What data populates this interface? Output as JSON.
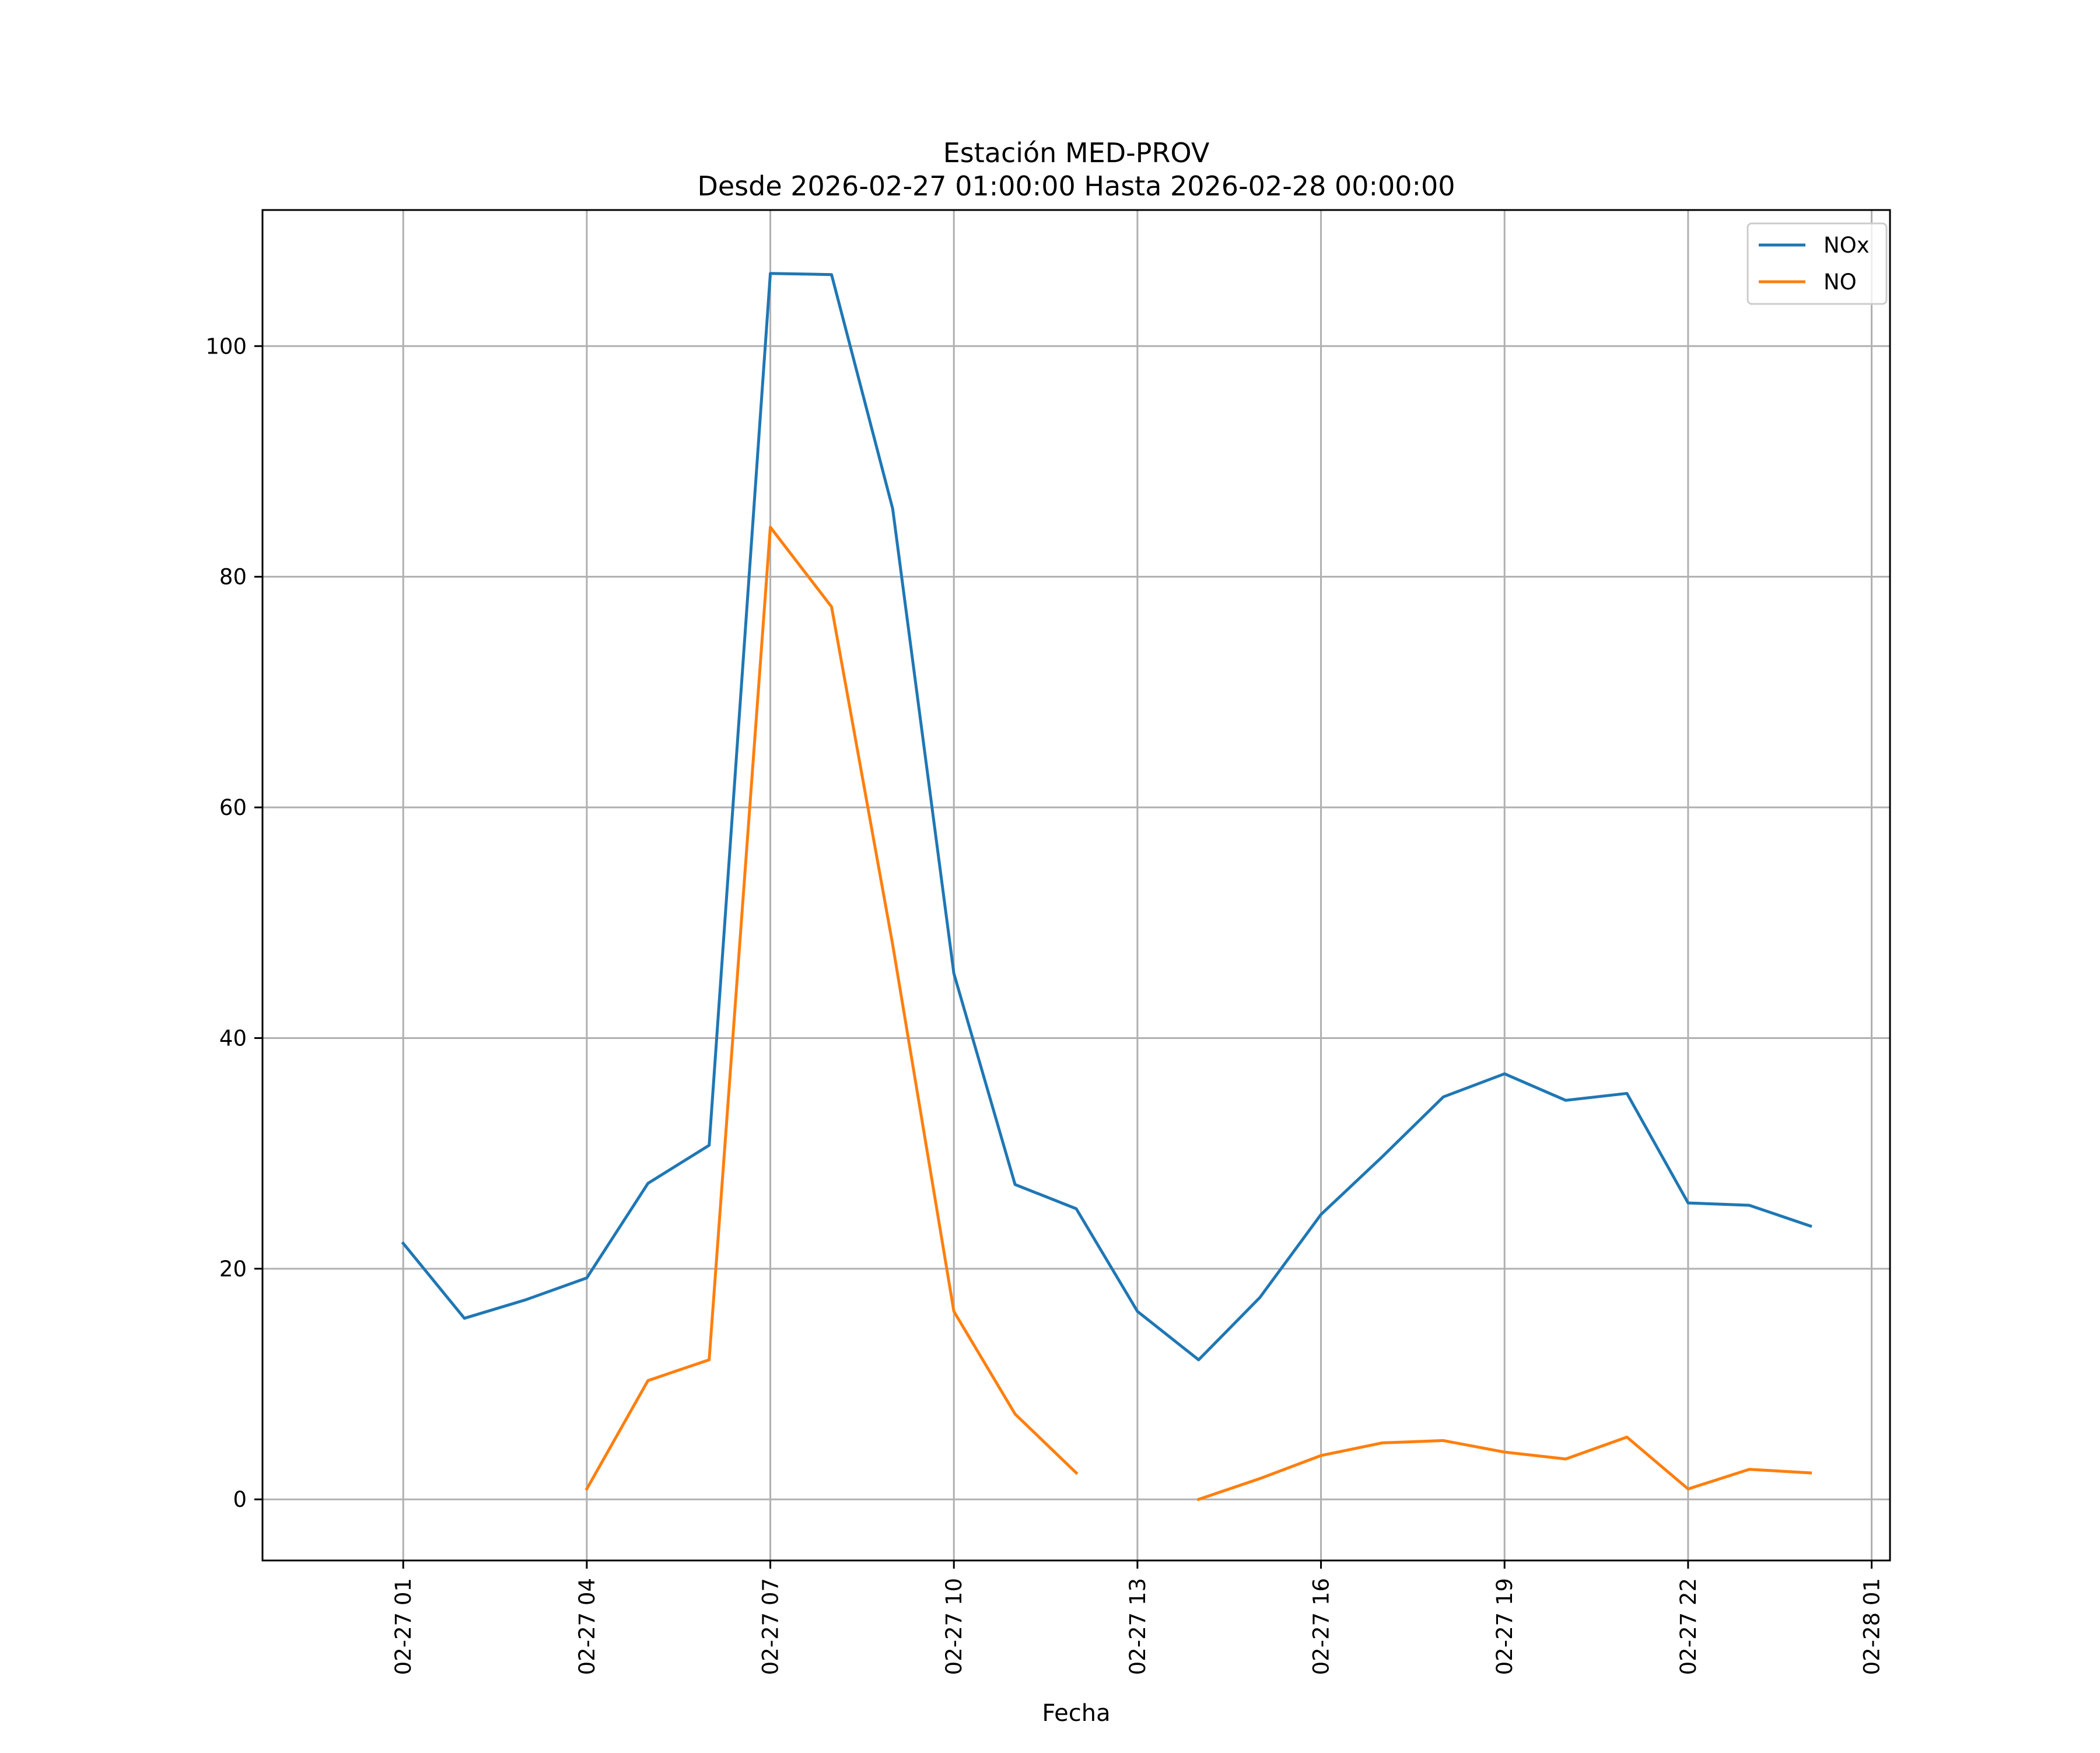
{
  "chart_data": {
    "type": "line",
    "title": "Estación MED-PROV",
    "subtitle": "Desde 2026-02-27 01:00:00 Hasta 2026-02-28 00:00:00",
    "xlabel": "Fecha",
    "ylabel": "",
    "x": [
      "2026-02-27 01:00",
      "2026-02-27 02:00",
      "2026-02-27 03:00",
      "2026-02-27 04:00",
      "2026-02-27 05:00",
      "2026-02-27 06:00",
      "2026-02-27 07:00",
      "2026-02-27 08:00",
      "2026-02-27 09:00",
      "2026-02-27 10:00",
      "2026-02-27 11:00",
      "2026-02-27 12:00",
      "2026-02-27 13:00",
      "2026-02-27 14:00",
      "2026-02-27 15:00",
      "2026-02-27 16:00",
      "2026-02-27 17:00",
      "2026-02-27 18:00",
      "2026-02-27 19:00",
      "2026-02-27 20:00",
      "2026-02-27 21:00",
      "2026-02-27 22:00",
      "2026-02-27 23:00",
      "2026-02-28 00:00"
    ],
    "xlim": [
      "2026-02-26 22:42",
      "2026-02-28 01:18"
    ],
    "ylim": [
      -5.3,
      111.8
    ],
    "xticks": [
      "2026-02-27 01:00",
      "2026-02-27 04:00",
      "2026-02-27 07:00",
      "2026-02-27 10:00",
      "2026-02-27 13:00",
      "2026-02-27 16:00",
      "2026-02-27 19:00",
      "2026-02-27 22:00",
      "2026-02-28 01:00"
    ],
    "xtick_labels": [
      "02-27 01",
      "02-27 04",
      "02-27 07",
      "02-27 10",
      "02-27 13",
      "02-27 16",
      "02-27 19",
      "02-27 22",
      "02-28 01"
    ],
    "yticks": [
      0,
      20,
      40,
      60,
      80,
      100
    ],
    "ytick_labels": [
      "0",
      "20",
      "40",
      "60",
      "80",
      "100"
    ],
    "grid": true,
    "legend_position": "top-right",
    "series": [
      {
        "name": "NOx",
        "color": "#1f77b4",
        "values": [
          22.2,
          15.7,
          17.3,
          19.2,
          27.4,
          30.7,
          106.3,
          106.2,
          85.9,
          45.6,
          27.3,
          25.2,
          16.3,
          12.1,
          17.5,
          24.7,
          29.7,
          34.9,
          36.9,
          34.6,
          35.2,
          25.7,
          25.5,
          23.7
        ]
      },
      {
        "name": "NO",
        "color": "#ff7f0e",
        "values": [
          null,
          null,
          null,
          0.9,
          10.3,
          12.1,
          84.3,
          77.4,
          48.1,
          16.3,
          7.4,
          2.3,
          null,
          0.0,
          1.8,
          3.8,
          4.9,
          5.1,
          4.1,
          3.5,
          5.4,
          0.9,
          2.6,
          2.3
        ]
      }
    ]
  }
}
